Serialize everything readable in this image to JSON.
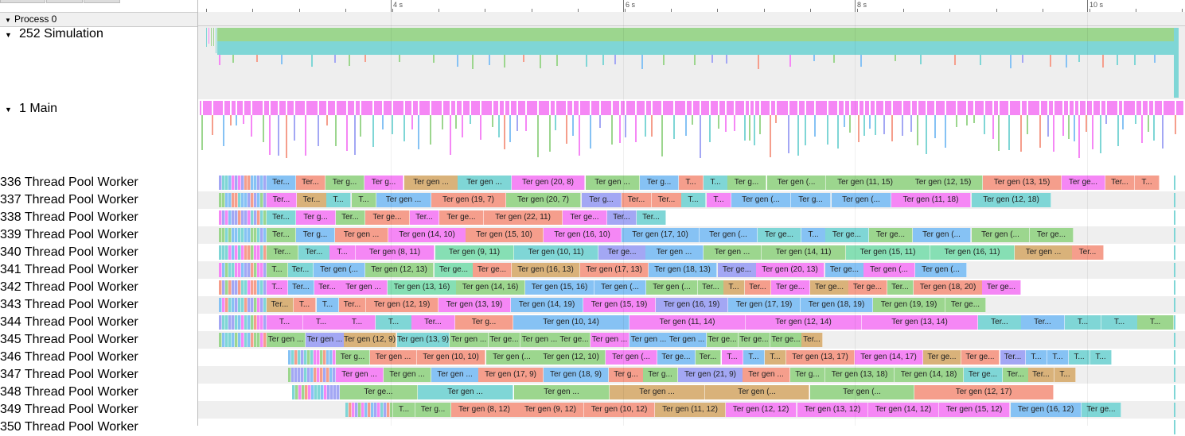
{
  "process": {
    "label": "Process 0"
  },
  "tracks": {
    "simulation": {
      "label": "252 Simulation"
    },
    "main": {
      "label": "1 Main"
    }
  },
  "ruler": {
    "ticks": [
      "4 s",
      "6 s",
      "8 s",
      "10 s"
    ]
  },
  "colors": {
    "green": "#9cd68e",
    "teal": "#7fd6d6",
    "blue": "#86c2f4",
    "pink": "#f587f5",
    "salmon": "#f59e8c",
    "purple": "#a3a7f4",
    "tan": "#d9b27a",
    "mint": "#86dfb4",
    "row_even": "#efefef",
    "row_odd": "#ffffff"
  },
  "workers": [
    {
      "label": "336 Thread Pool Worker",
      "slices": [
        [
          "Ter...",
          "blue"
        ],
        [
          "Ter...",
          "salmon"
        ],
        [
          "Ter g...",
          "green"
        ],
        [
          "Ter g...",
          "pink"
        ],
        [
          "Ter gen ...",
          "tan"
        ],
        [
          "Ter gen ...",
          "teal"
        ],
        [
          "Ter gen (20, 8)",
          "pink"
        ],
        [
          "Ter gen ...",
          "green"
        ],
        [
          "Ter g...",
          "blue"
        ],
        [
          "T...",
          "salmon"
        ],
        [
          "T...",
          "teal"
        ],
        [
          "Ter g...",
          "green"
        ],
        [
          "Ter gen (...",
          "green"
        ],
        [
          "Ter gen (11, 15)",
          "green"
        ],
        [
          "Ter gen (12, 15)",
          "green"
        ],
        [
          "Ter gen (13, 15)",
          "salmon"
        ],
        [
          "Ter ge...",
          "pink"
        ],
        [
          "Ter...",
          "salmon"
        ],
        [
          "T...",
          "salmon"
        ]
      ]
    },
    {
      "label": "337 Thread Pool Worker",
      "slices": [
        [
          "Ter...",
          "pink"
        ],
        [
          "Ter...",
          "tan"
        ],
        [
          "T...",
          "teal"
        ],
        [
          "T...",
          "green"
        ],
        [
          "Ter gen ...",
          "blue"
        ],
        [
          "Ter gen (19, 7)",
          "salmon"
        ],
        [
          "Ter gen (20, 7)",
          "green"
        ],
        [
          "Ter g...",
          "purple"
        ],
        [
          "Ter...",
          "salmon"
        ],
        [
          "Ter...",
          "salmon"
        ],
        [
          "T...",
          "teal"
        ],
        [
          "T...",
          "pink"
        ],
        [
          "Ter gen (...",
          "blue"
        ],
        [
          "Ter g...",
          "blue"
        ],
        [
          "Ter gen (...",
          "blue"
        ],
        [
          "Ter gen (11, 18)",
          "pink"
        ],
        [
          "Ter gen (12, 18)",
          "teal"
        ]
      ]
    },
    {
      "label": "338 Thread Pool Worker",
      "slices": [
        [
          "Ter...",
          "teal"
        ],
        [
          "Ter g...",
          "pink"
        ],
        [
          "Ter...",
          "green"
        ],
        [
          "Ter ge...",
          "salmon"
        ],
        [
          "Ter...",
          "pink"
        ],
        [
          "Ter ge...",
          "salmon"
        ],
        [
          "Ter gen (22, 11)",
          "salmon"
        ],
        [
          "Ter ge...",
          "pink"
        ],
        [
          "Ter...",
          "purple"
        ],
        [
          "Ter...",
          "teal"
        ]
      ]
    },
    {
      "label": "339 Thread Pool Worker",
      "slices": [
        [
          "Ter...",
          "green"
        ],
        [
          "Ter g...",
          "blue"
        ],
        [
          "Ter gen ...",
          "salmon"
        ],
        [
          "Ter gen (14, 10)",
          "pink"
        ],
        [
          "Ter gen (15, 10)",
          "salmon"
        ],
        [
          "Ter gen (16, 10)",
          "pink"
        ],
        [
          "Ter gen (17, 10)",
          "blue"
        ],
        [
          "Ter gen (...",
          "blue"
        ],
        [
          "Ter ge...",
          "teal"
        ],
        [
          "T...",
          "blue"
        ],
        [
          "Ter ge...",
          "teal"
        ],
        [
          "Ter ge...",
          "green"
        ],
        [
          "Ter gen (...",
          "blue"
        ],
        [
          "Ter gen (...",
          "green"
        ],
        [
          "Ter ge...",
          "green"
        ]
      ]
    },
    {
      "label": "340 Thread Pool Worker",
      "slices": [
        [
          "Ter...",
          "green"
        ],
        [
          "Ter...",
          "teal"
        ],
        [
          "T...",
          "pink"
        ],
        [
          "Ter gen (8, 11)",
          "pink"
        ],
        [
          "Ter gen (9, 11)",
          "mint"
        ],
        [
          "Ter gen (10, 11)",
          "teal"
        ],
        [
          "Ter ge...",
          "purple"
        ],
        [
          "Ter gen ...",
          "blue"
        ],
        [
          "Ter gen ...",
          "green"
        ],
        [
          "Ter gen (14, 11)",
          "green"
        ],
        [
          "Ter gen (15, 11)",
          "mint"
        ],
        [
          "Ter gen (16, 11)",
          "mint"
        ],
        [
          "Ter gen ...",
          "tan"
        ],
        [
          "Ter...",
          "salmon"
        ]
      ]
    },
    {
      "label": "341 Thread Pool Worker",
      "slices": [
        [
          "T...",
          "green"
        ],
        [
          "Ter...",
          "teal"
        ],
        [
          "Ter gen (...",
          "blue"
        ],
        [
          "Ter gen (12, 13)",
          "green"
        ],
        [
          "Ter ge...",
          "mint"
        ],
        [
          "Ter ge...",
          "salmon"
        ],
        [
          "Ter gen (16, 13)",
          "tan"
        ],
        [
          "Ter gen (17, 13)",
          "salmon"
        ],
        [
          "Ter gen (18, 13)",
          "blue"
        ],
        [
          "Ter ge...",
          "purple"
        ],
        [
          "Ter gen (20, 13)",
          "pink"
        ],
        [
          "Ter ge...",
          "blue"
        ],
        [
          "Ter gen (...",
          "pink"
        ],
        [
          "Ter gen (...",
          "blue"
        ]
      ]
    },
    {
      "label": "342 Thread Pool Worker",
      "slices": [
        [
          "T...",
          "pink"
        ],
        [
          "Ter...",
          "blue"
        ],
        [
          "Ter...",
          "pink"
        ],
        [
          "Ter gen ...",
          "pink"
        ],
        [
          "Ter gen (13, 16)",
          "mint"
        ],
        [
          "Ter gen (14, 16)",
          "green"
        ],
        [
          "Ter gen (15, 16)",
          "blue"
        ],
        [
          "Ter gen (...",
          "blue"
        ],
        [
          "Ter gen (...",
          "green"
        ],
        [
          "Ter...",
          "green"
        ],
        [
          "T...",
          "tan"
        ],
        [
          "Ter...",
          "salmon"
        ],
        [
          "Ter ge...",
          "pink"
        ],
        [
          "Ter ge...",
          "tan"
        ],
        [
          "Ter ge...",
          "salmon"
        ],
        [
          "Ter...",
          "green"
        ],
        [
          "Ter gen (18, 20)",
          "salmon"
        ],
        [
          "Ter ge...",
          "pink"
        ]
      ]
    },
    {
      "label": "343 Thread Pool Worker",
      "slices": [
        [
          "Ter...",
          "tan"
        ],
        [
          "T...",
          "salmon"
        ],
        [
          "T...",
          "blue"
        ],
        [
          "Ter...",
          "salmon"
        ],
        [
          "Ter gen (12, 19)",
          "salmon"
        ],
        [
          "Ter gen (13, 19)",
          "pink"
        ],
        [
          "Ter gen (14, 19)",
          "blue"
        ],
        [
          "Ter gen (15, 19)",
          "pink"
        ],
        [
          "Ter gen (16, 19)",
          "purple"
        ],
        [
          "Ter gen (17, 19)",
          "blue"
        ],
        [
          "Ter gen (18, 19)",
          "blue"
        ],
        [
          "Ter gen (19, 19)",
          "green"
        ],
        [
          "Ter ge...",
          "green"
        ]
      ]
    },
    {
      "label": "344 Thread Pool Worker",
      "slices": [
        [
          "T...",
          "pink"
        ],
        [
          "T...",
          "pink"
        ],
        [
          "T...",
          "pink"
        ],
        [
          "T...",
          "teal"
        ],
        [
          "Ter...",
          "pink"
        ],
        [
          "Ter g...",
          "salmon"
        ],
        [
          "Ter gen (10, 14)",
          "blue"
        ],
        [
          "Ter gen (11, 14)",
          "pink"
        ],
        [
          "Ter gen (12, 14)",
          "pink"
        ],
        [
          "Ter gen (13, 14)",
          "pink"
        ],
        [
          "Ter...",
          "teal"
        ],
        [
          "Ter...",
          "blue"
        ],
        [
          "T...",
          "teal"
        ],
        [
          "T...",
          "teal"
        ],
        [
          "T...",
          "green"
        ]
      ]
    },
    {
      "label": "345 Thread Pool Worker",
      "slices": [
        [
          "Ter gen ...",
          "green"
        ],
        [
          "Ter gen ...",
          "purple"
        ],
        [
          "Ter gen (12, 9)",
          "tan"
        ],
        [
          "Ter gen (13, 9)",
          "teal"
        ],
        [
          "Ter gen ...",
          "green"
        ],
        [
          "Ter ge...",
          "green"
        ],
        [
          "Ter gen ...",
          "green"
        ],
        [
          "Ter ge...",
          "green"
        ],
        [
          "Ter gen ...",
          "pink"
        ],
        [
          "Ter gen ...",
          "blue"
        ],
        [
          "Ter gen ...",
          "blue"
        ],
        [
          "Ter ge...",
          "green"
        ],
        [
          "Ter ge...",
          "green"
        ],
        [
          "Ter ge...",
          "green"
        ],
        [
          "Ter...",
          "tan"
        ]
      ]
    },
    {
      "label": "346 Thread Pool Worker",
      "slices": [
        [
          "Ter g...",
          "green"
        ],
        [
          "Ter gen ...",
          "salmon"
        ],
        [
          "Ter gen (10, 10)",
          "salmon"
        ],
        [
          "Ter gen (...",
          "green"
        ],
        [
          "Ter gen (12, 10)",
          "green"
        ],
        [
          "Ter gen (...",
          "pink"
        ],
        [
          "Ter ge...",
          "blue"
        ],
        [
          "Ter...",
          "green"
        ],
        [
          "T...",
          "pink"
        ],
        [
          "T...",
          "blue"
        ],
        [
          "T...",
          "tan"
        ],
        [
          "Ter gen (13, 17)",
          "salmon"
        ],
        [
          "Ter gen (14, 17)",
          "pink"
        ],
        [
          "Ter ge...",
          "tan"
        ],
        [
          "Ter ge...",
          "salmon"
        ],
        [
          "Ter...",
          "purple"
        ],
        [
          "T...",
          "blue"
        ],
        [
          "T...",
          "blue"
        ],
        [
          "T...",
          "teal"
        ],
        [
          "T...",
          "teal"
        ]
      ]
    },
    {
      "label": "347 Thread Pool Worker",
      "slices": [
        [
          "Ter gen ...",
          "pink"
        ],
        [
          "Ter gen ...",
          "green"
        ],
        [
          "Ter gen ...",
          "blue"
        ],
        [
          "Ter gen (17, 9)",
          "salmon"
        ],
        [
          "Ter gen (18, 9)",
          "blue"
        ],
        [
          "Ter g...",
          "salmon"
        ],
        [
          "Ter g...",
          "green"
        ],
        [
          "Ter gen (21, 9)",
          "purple"
        ],
        [
          "Ter gen ...",
          "salmon"
        ],
        [
          "Ter g...",
          "green"
        ],
        [
          "Ter gen (13, 18)",
          "green"
        ],
        [
          "Ter gen (14, 18)",
          "green"
        ],
        [
          "Ter ge...",
          "teal"
        ],
        [
          "Ter...",
          "green"
        ],
        [
          "Ter...",
          "tan"
        ],
        [
          "T...",
          "tan"
        ]
      ]
    },
    {
      "label": "348 Thread Pool Worker",
      "slices": [
        [
          "Ter ge...",
          "green"
        ],
        [
          "Ter gen ...",
          "teal"
        ],
        [
          "Ter gen ...",
          "green"
        ],
        [
          "Ter gen ...",
          "tan"
        ],
        [
          "Ter gen (...",
          "tan"
        ],
        [
          "Ter gen (...",
          "green"
        ],
        [
          "Ter gen (12, 17)",
          "salmon"
        ]
      ]
    },
    {
      "label": "349 Thread Pool Worker",
      "slices": [
        [
          "T...",
          "green"
        ],
        [
          "Ter g...",
          "green"
        ],
        [
          "Ter gen (8, 12)",
          "salmon"
        ],
        [
          "Ter gen (9, 12)",
          "salmon"
        ],
        [
          "Ter gen (10, 12)",
          "salmon"
        ],
        [
          "Ter gen (11, 12)",
          "tan"
        ],
        [
          "Ter gen (12, 12)",
          "pink"
        ],
        [
          "Ter gen (13, 12)",
          "pink"
        ],
        [
          "Ter gen (14, 12)",
          "pink"
        ],
        [
          "Ter gen (15, 12)",
          "pink"
        ],
        [
          "Ter gen (16, 12)",
          "blue"
        ],
        [
          "Ter ge...",
          "teal"
        ]
      ]
    },
    {
      "label": "350 Thread Pool Worker",
      "slices": []
    }
  ]
}
